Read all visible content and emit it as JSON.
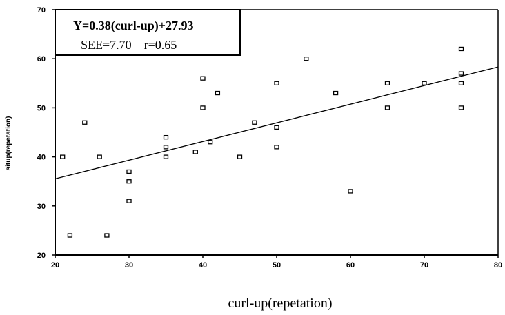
{
  "chart_data": {
    "type": "scatter",
    "xlabel": "curl-up(repetation)",
    "ylabel": "situp(repetation)",
    "xlim": [
      20,
      80
    ],
    "ylim": [
      20,
      70
    ],
    "xticks": [
      "20",
      "30",
      "40",
      "50",
      "60",
      "70",
      "80"
    ],
    "yticks": [
      "20",
      "30",
      "40",
      "50",
      "60",
      "70"
    ],
    "grid": false,
    "annotation": {
      "line1": "Y=0.38(curl-up)+27.93",
      "line2": "SEE=7.70    r=0.65"
    },
    "regression": {
      "slope": 0.38,
      "intercept": 27.93,
      "x_range": [
        20,
        80
      ]
    },
    "points": [
      {
        "x": 21,
        "y": 40
      },
      {
        "x": 22,
        "y": 24
      },
      {
        "x": 24,
        "y": 47
      },
      {
        "x": 26,
        "y": 40
      },
      {
        "x": 27,
        "y": 24
      },
      {
        "x": 30,
        "y": 37
      },
      {
        "x": 30,
        "y": 35
      },
      {
        "x": 30,
        "y": 31
      },
      {
        "x": 35,
        "y": 44
      },
      {
        "x": 35,
        "y": 42
      },
      {
        "x": 35,
        "y": 40
      },
      {
        "x": 39,
        "y": 41
      },
      {
        "x": 40,
        "y": 56
      },
      {
        "x": 40,
        "y": 50
      },
      {
        "x": 41,
        "y": 43
      },
      {
        "x": 42,
        "y": 53
      },
      {
        "x": 45,
        "y": 40
      },
      {
        "x": 47,
        "y": 47
      },
      {
        "x": 50,
        "y": 55
      },
      {
        "x": 50,
        "y": 46
      },
      {
        "x": 50,
        "y": 42
      },
      {
        "x": 54,
        "y": 60
      },
      {
        "x": 58,
        "y": 53
      },
      {
        "x": 60,
        "y": 33
      },
      {
        "x": 65,
        "y": 55
      },
      {
        "x": 65,
        "y": 50
      },
      {
        "x": 70,
        "y": 55
      },
      {
        "x": 75,
        "y": 62
      },
      {
        "x": 75,
        "y": 57
      },
      {
        "x": 75,
        "y": 55
      },
      {
        "x": 75,
        "y": 50
      }
    ]
  }
}
